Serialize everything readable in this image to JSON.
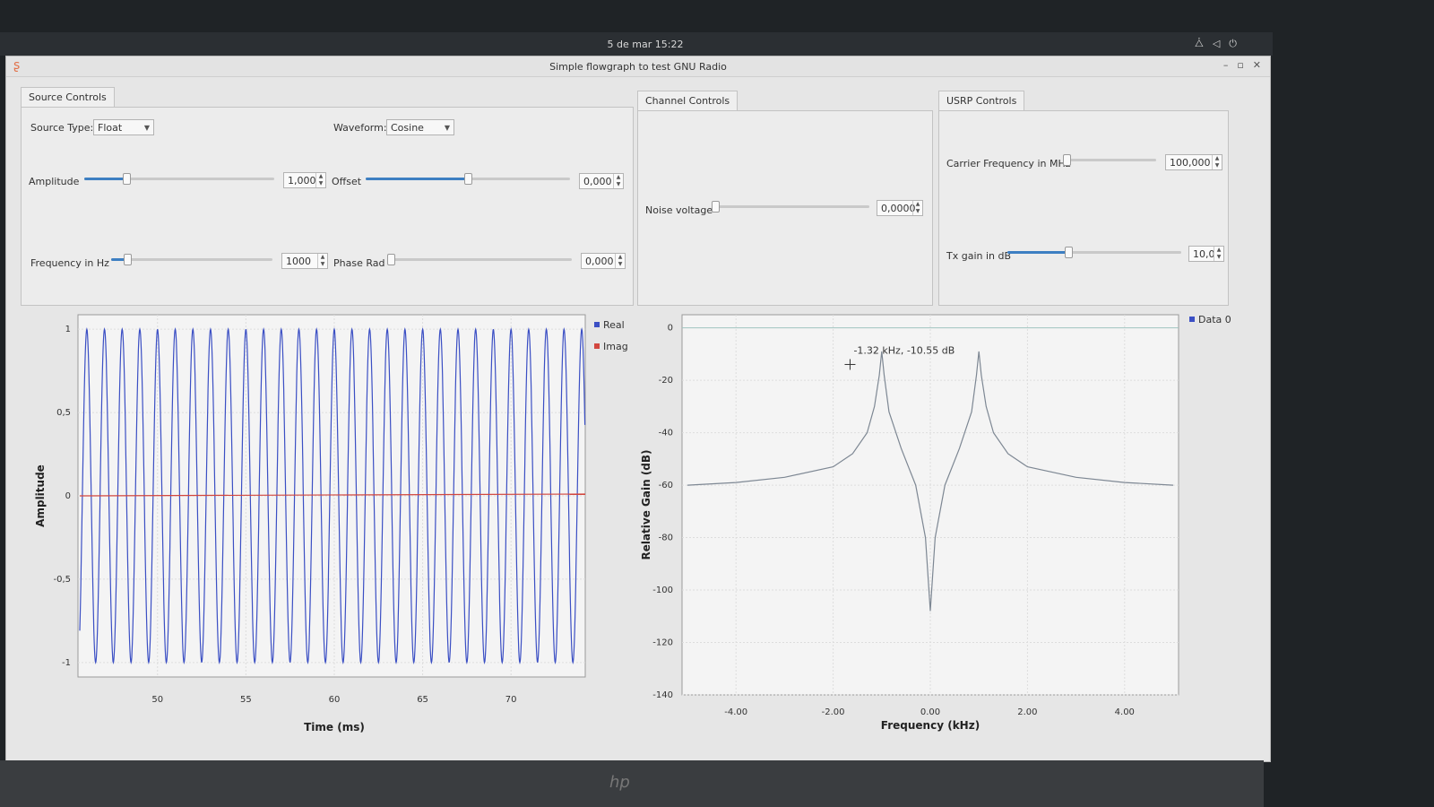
{
  "system": {
    "clock": "5 de mar  15:22"
  },
  "window": {
    "title": "Simple flowgraph to test GNU Radio"
  },
  "tabs": {
    "source": "Source Controls",
    "channel": "Channel Controls",
    "usrp": "USRP Controls"
  },
  "source_controls": {
    "source_type_label": "Source Type:",
    "source_type_value": "Float",
    "waveform_label": "Waveform:",
    "waveform_value": "Cosine",
    "amplitude_label": "Amplitude",
    "amplitude_value": "1,000",
    "amplitude_level": 0.22,
    "offset_label": "Offset",
    "offset_value": "0,000",
    "offset_level": 0.5,
    "frequency_label": "Frequency in Hz",
    "frequency_value": "1000",
    "frequency_level": 0.1,
    "phase_label": "Phase Rad",
    "phase_value": "0,000",
    "phase_level": 0.0
  },
  "channel_controls": {
    "noise_label": "Noise voltage",
    "noise_value": "0,0000",
    "noise_level": 0.0
  },
  "usrp_controls": {
    "carrier_label": "Carrier Frequency in MHz",
    "carrier_value": "100,000",
    "carrier_level": 0.03,
    "txgain_label": "Tx gain in dB",
    "txgain_value": "10,0",
    "txgain_level": 0.35
  },
  "colors": {
    "real": "#3b4fc4",
    "imag": "#d2473f",
    "fft": "#7d8793",
    "accent": "#3d7fc2"
  },
  "chart_data": [
    {
      "type": "line",
      "xlabel": "Time (ms)",
      "ylabel": "Amplitude",
      "xlim": [
        45.5,
        74.2
      ],
      "ylim": [
        -1,
        1
      ],
      "x_ticks": [
        "50",
        "55",
        "60",
        "65",
        "70"
      ],
      "y_ticks": [
        "1",
        "0,5",
        "0",
        "-0,5",
        "-1"
      ],
      "legend_position": "right",
      "grid": true,
      "series": [
        {
          "name": "Real",
          "waveform": "cosine",
          "frequency_khz": 1.0,
          "amplitude": 1.0
        },
        {
          "name": "Imag",
          "waveform": "constant",
          "value": 0
        }
      ]
    },
    {
      "type": "line",
      "xlabel": "Frequency (kHz)",
      "ylabel": "Relative Gain (dB)",
      "xlim": [
        -5.0,
        5.0
      ],
      "ylim": [
        -140,
        5
      ],
      "x_ticks": [
        "-4.00",
        "-2.00",
        "0.00",
        "2.00",
        "4.00"
      ],
      "y_ticks": [
        "0",
        "-20",
        "-40",
        "-60",
        "-80",
        "-100",
        "-120",
        "-140"
      ],
      "legend_position": "top-right",
      "grid": true,
      "annotation": "-1.32 kHz, -10.55 dB",
      "series": [
        {
          "name": "Data 0",
          "x": [
            -5.0,
            -4.0,
            -3.0,
            -2.0,
            -1.6,
            -1.3,
            -1.15,
            -1.05,
            -1.0,
            -0.95,
            -0.85,
            -0.6,
            -0.3,
            -0.1,
            0.0,
            0.1,
            0.3,
            0.6,
            0.85,
            0.95,
            1.0,
            1.05,
            1.15,
            1.3,
            1.6,
            2.0,
            3.0,
            4.0,
            5.0
          ],
          "y": [
            -60,
            -59,
            -57,
            -53,
            -48,
            -40,
            -30,
            -18,
            -9,
            -18,
            -32,
            -46,
            -60,
            -80,
            -108,
            -80,
            -60,
            -46,
            -32,
            -18,
            -9,
            -18,
            -30,
            -40,
            -48,
            -53,
            -57,
            -59,
            -60
          ]
        }
      ]
    }
  ]
}
